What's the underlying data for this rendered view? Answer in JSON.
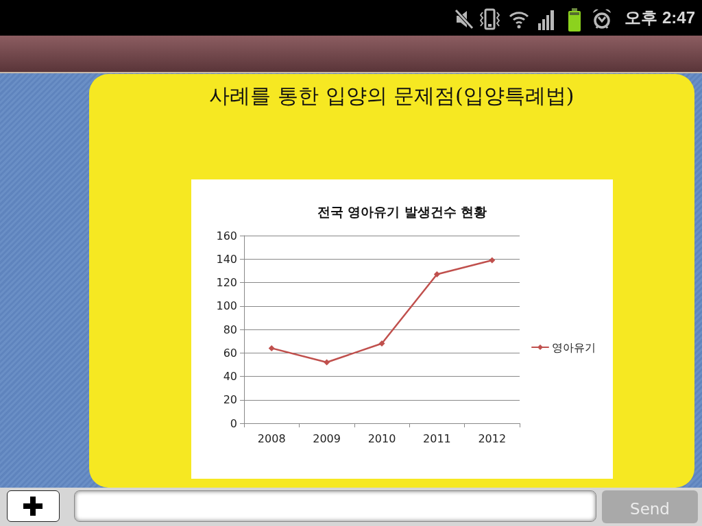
{
  "chart_data": {
    "type": "line",
    "title": "사례를 통한 입양의 문제점(입양특례법)",
    "subtitle": "전국 영아유기 발생건수 현황",
    "categories": [
      "2008",
      "2009",
      "2010",
      "2011",
      "2012"
    ],
    "series": [
      {
        "name": "영아유기",
        "color": "#c0504d",
        "values": [
          64,
          52,
          68,
          127,
          139
        ]
      }
    ],
    "ylim": [
      0,
      160
    ],
    "yticks": [
      0,
      20,
      40,
      60,
      80,
      100,
      120,
      140,
      160
    ],
    "grid": "y",
    "legend": "right",
    "marker": "diamond",
    "line_style": "solid",
    "annotations": [
      "오후 2:47",
      "Send"
    ]
  }
}
